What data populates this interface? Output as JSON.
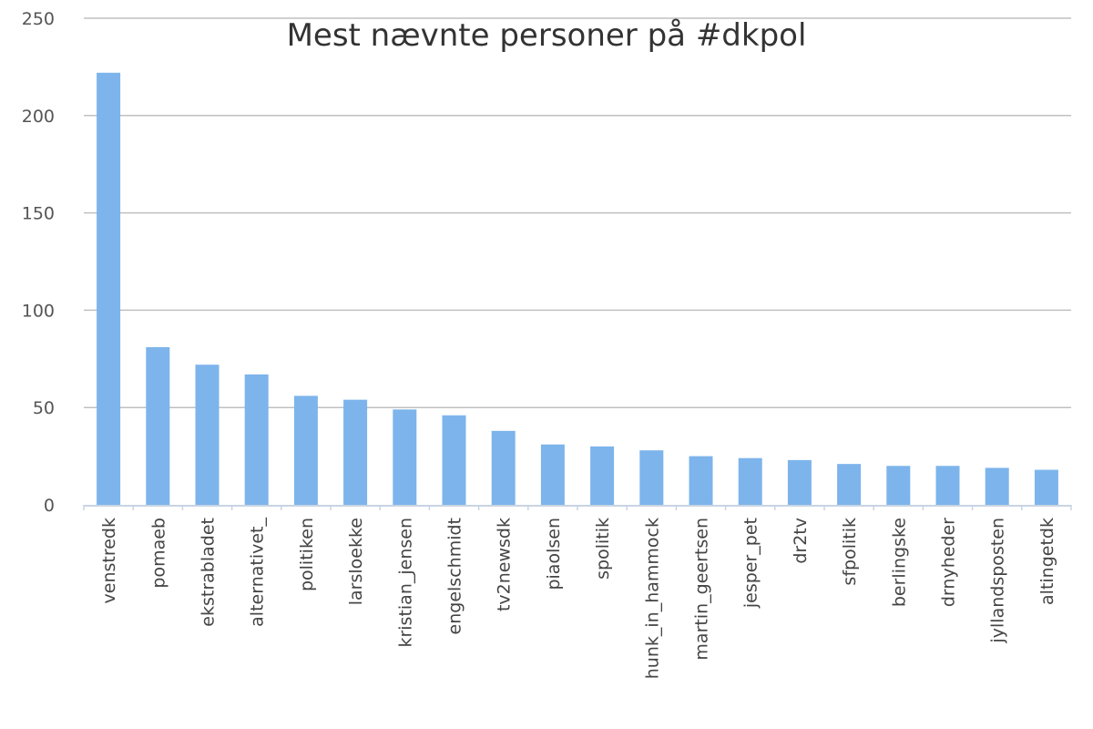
{
  "chart_data": {
    "type": "bar",
    "title": "Mest nævnte personer på #dkpol",
    "xlabel": "",
    "ylabel": "",
    "ylim": [
      0,
      250
    ],
    "yticks": [
      0,
      50,
      100,
      150,
      200,
      250
    ],
    "grid": true,
    "legend": "none",
    "bar_color": "#7db4eb",
    "categories": [
      "venstredk",
      "pomaeb",
      "ekstrabladet",
      "alternativet_",
      "politiken",
      "larsloekke",
      "kristian_jensen",
      "engelschmidt",
      "tv2newsdk",
      "piaolsen",
      "spolitik",
      "hunk_in_hammock",
      "martin_geertsen",
      "jesper_pet",
      "dr2tv",
      "sfpolitik",
      "berlingske",
      "drnyheder",
      "jyllandsposten",
      "altingetdk"
    ],
    "values": [
      222,
      81,
      72,
      67,
      56,
      54,
      49,
      46,
      38,
      31,
      30,
      28,
      25,
      24,
      23,
      21,
      20,
      20,
      19,
      18
    ]
  }
}
